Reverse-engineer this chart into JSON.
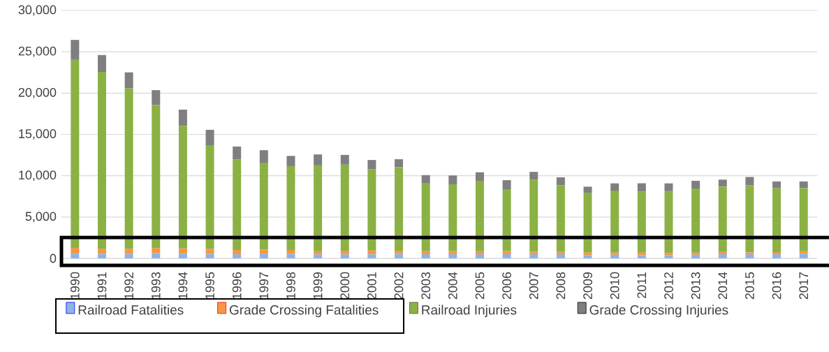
{
  "chart_data": {
    "type": "bar",
    "stacked": true,
    "categories": [
      "1990",
      "1991",
      "1992",
      "1993",
      "1994",
      "1995",
      "1996",
      "1997",
      "1998",
      "1999",
      "2000",
      "2001",
      "2002",
      "2003",
      "2004",
      "2005",
      "2006",
      "2007",
      "2008",
      "2009",
      "2010",
      "2011",
      "2012",
      "2013",
      "2014",
      "2015",
      "2016",
      "2017"
    ],
    "series": [
      {
        "name": "Railroad Fatalities",
        "color": "#8eb4e3",
        "values": [
          570,
          540,
          540,
          630,
          570,
          540,
          510,
          540,
          540,
          480,
          480,
          480,
          540,
          510,
          510,
          510,
          510,
          510,
          510,
          410,
          440,
          410,
          410,
          440,
          510,
          510,
          510,
          570
        ]
      },
      {
        "name": "Grade Crossing Fatalities",
        "color": "#f79646",
        "values": [
          700,
          630,
          600,
          630,
          630,
          600,
          510,
          510,
          480,
          450,
          450,
          480,
          390,
          350,
          380,
          350,
          380,
          310,
          280,
          290,
          250,
          290,
          250,
          250,
          280,
          220,
          250,
          290
        ]
      },
      {
        "name": "Railroad Injuries",
        "color": "#8bb144",
        "values": [
          22750,
          21390,
          19430,
          17290,
          14840,
          12550,
          10950,
          10530,
          10140,
          10320,
          10410,
          9800,
          10100,
          8200,
          8070,
          8520,
          7470,
          8700,
          8070,
          7250,
          7500,
          7370,
          7470,
          7750,
          7880,
          8100,
          7720,
          7660
        ]
      },
      {
        "name": "Grade Crossing Injuries",
        "color": "#7f7f7f",
        "values": [
          2420,
          2050,
          1940,
          1810,
          1960,
          1870,
          1570,
          1510,
          1240,
          1330,
          1180,
          1150,
          970,
          1020,
          1080,
          1040,
          1110,
          950,
          950,
          730,
          890,
          1020,
          950,
          950,
          860,
          1020,
          830,
          790
        ]
      }
    ],
    "ylim": [
      0,
      30000
    ],
    "yticks": [
      0,
      {
        "value": 5000,
        "label": "5,000"
      },
      {
        "value": 10000,
        "label": "10,000"
      },
      {
        "value": 15000,
        "label": "15,000"
      },
      {
        "value": 20000,
        "label": "20,000"
      },
      {
        "value": 25000,
        "label": "25,000"
      },
      {
        "value": 30000,
        "label": "30,000"
      }
    ],
    "grid": "y",
    "legend": "bottom"
  }
}
